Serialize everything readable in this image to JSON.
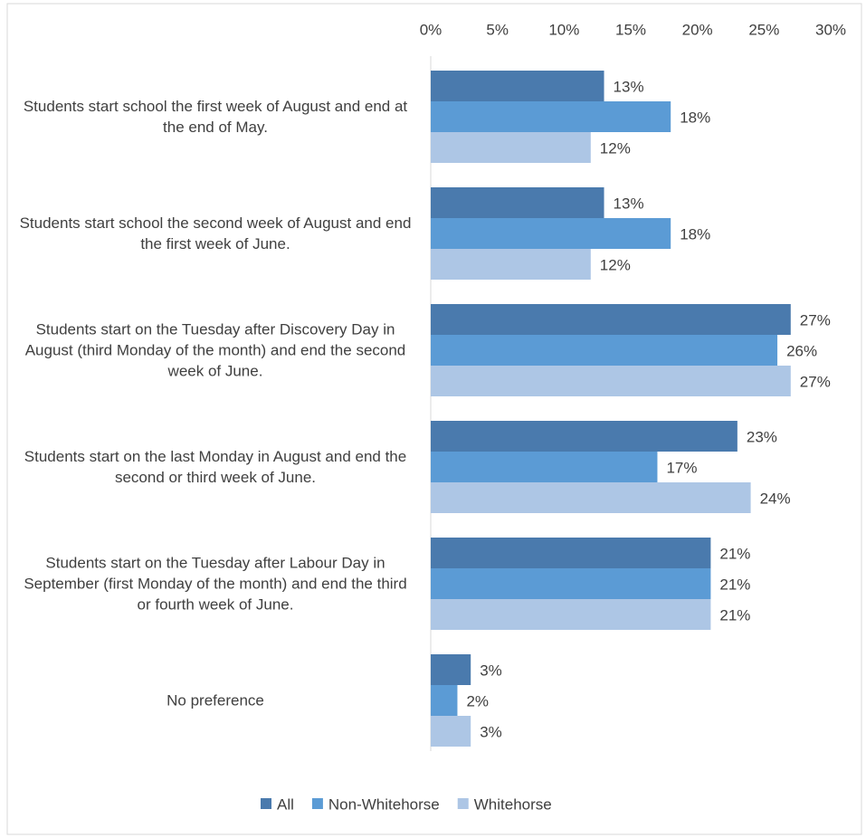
{
  "chart_data": {
    "type": "barh",
    "categories": [
      "Students start school the first week of August and end at the end of May.",
      "Students start school the second week of August and end the first week of June.",
      "Students start on the Tuesday after Discovery Day in August (third Monday of the month) and end the second week of June.",
      "Students start on the last Monday in August and end the second or third week of June.",
      "Students start on the Tuesday after Labour Day in September (first Monday of the month) and end the third or fourth week of June.",
      "No preference"
    ],
    "series": [
      {
        "name": "All",
        "color": "#4a7aad",
        "values": [
          13,
          13,
          27,
          23,
          21,
          3
        ],
        "value_labels": [
          "13%",
          "13%",
          "27%",
          "23%",
          "21%",
          "3%"
        ]
      },
      {
        "name": "Non-Whitehorse",
        "color": "#5b9bd5",
        "values": [
          18,
          18,
          26,
          17,
          21,
          2
        ],
        "value_labels": [
          "18%",
          "18%",
          "26%",
          "17%",
          "21%",
          "2%"
        ]
      },
      {
        "name": "Whitehorse",
        "color": "#adc6e5",
        "values": [
          12,
          12,
          27,
          24,
          21,
          3
        ],
        "value_labels": [
          "12%",
          "12%",
          "27%",
          "24%",
          "21%",
          "3%"
        ]
      }
    ],
    "xlim": [
      0,
      30
    ],
    "xticks": [
      {
        "value": 0,
        "label": "0%"
      },
      {
        "value": 5,
        "label": "5%"
      },
      {
        "value": 10,
        "label": "10%"
      },
      {
        "value": 15,
        "label": "15%"
      },
      {
        "value": 20,
        "label": "20%"
      },
      {
        "value": 25,
        "label": "25%"
      },
      {
        "value": 30,
        "label": "30%"
      }
    ],
    "legend": "bottom"
  }
}
